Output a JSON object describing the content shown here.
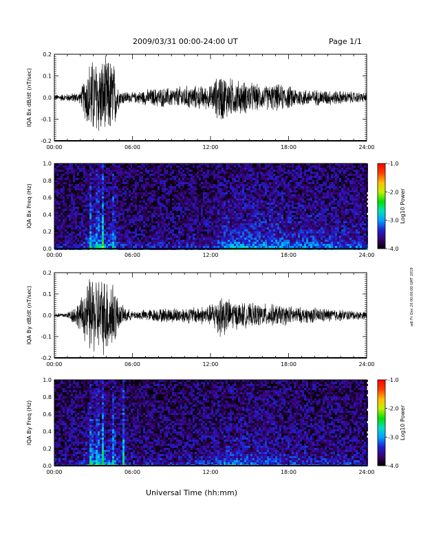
{
  "header": {
    "date_range": "2009/03/31  00:00-24:00 UT",
    "page": "Page 1/1"
  },
  "side_note": "adl Fri Dec 20 00:00:00 GMT 2019",
  "x_axis": {
    "title": "Universal Time (hh:mm)",
    "tick_labels": [
      "00:00",
      "06:00",
      "12:00",
      "18:00",
      "24:00"
    ]
  },
  "colorbar": {
    "label": "Log10 Power",
    "ticks": [
      "-1.0",
      "-2.0",
      "-3.0",
      "-4.0"
    ],
    "range": [
      -4.0,
      -1.0
    ],
    "colormap": [
      "#000000",
      "#3a0070",
      "#2020d0",
      "#00a0ff",
      "#00e0c0",
      "#00e000",
      "#c0f000",
      "#ffc000",
      "#ff4000",
      "#ff0000"
    ]
  },
  "chart_data": [
    {
      "type": "line",
      "ylabel": "IQA Bx dB/dt (nT/sec)",
      "xlim": [
        "00:00",
        "24:00"
      ],
      "ylim": [
        -0.2,
        0.2
      ],
      "y_ticks": [
        "0.2",
        "0.1",
        "0.0",
        "-0.1",
        "-0.2"
      ],
      "series": [
        {
          "x": [
            "00:00",
            "01:00",
            "02:00",
            "02:45",
            "03:15",
            "03:45",
            "04:30",
            "05:00",
            "06:00",
            "07:00",
            "08:00",
            "09:00",
            "10:00",
            "11:00",
            "12:00",
            "12:45",
            "13:30",
            "14:00",
            "15:00",
            "16:00",
            "17:00",
            "18:00",
            "19:00",
            "20:00",
            "21:00",
            "22:00",
            "23:00",
            "24:00"
          ],
          "values": [
            0.015,
            0.02,
            0.03,
            0.2,
            0.2,
            0.2,
            0.2,
            0.04,
            0.025,
            0.04,
            0.05,
            0.05,
            0.06,
            0.06,
            0.06,
            0.13,
            0.1,
            0.09,
            0.08,
            0.06,
            0.07,
            0.06,
            0.045,
            0.04,
            0.04,
            0.035,
            0.03,
            0.025
          ]
        }
      ],
      "line_color": "#000000"
    },
    {
      "type": "heatmap",
      "ylabel": "IQA Bx Freq (Hz)",
      "xlim": [
        "00:00",
        "24:00"
      ],
      "ylim": [
        0.0,
        1.0
      ],
      "y_ticks": [
        "1.0",
        "0.8",
        "0.6",
        "0.4",
        "0.2",
        "0.0"
      ],
      "bursts": [
        "02:45",
        "03:15",
        "03:40",
        "04:30"
      ],
      "activity_x": [
        "00:00",
        "02:00",
        "03:00",
        "04:00",
        "05:00",
        "06:00",
        "08:00",
        "10:00",
        "12:00",
        "13:00",
        "14:00",
        "16:00",
        "18:00",
        "20:00",
        "22:00",
        "24:00"
      ],
      "activity": [
        0.18,
        0.25,
        0.6,
        0.5,
        0.25,
        0.2,
        0.22,
        0.25,
        0.3,
        0.55,
        0.6,
        0.6,
        0.55,
        0.5,
        0.45,
        0.4
      ]
    },
    {
      "type": "line",
      "ylabel": "IQA By dB/dt (nT/sec)",
      "xlim": [
        "00:00",
        "24:00"
      ],
      "ylim": [
        -0.2,
        0.2
      ],
      "y_ticks": [
        "0.2",
        "0.1",
        "0.0",
        "-0.1",
        "-0.2"
      ],
      "series": [
        {
          "x": [
            "00:00",
            "01:00",
            "02:00",
            "02:45",
            "03:15",
            "03:45",
            "04:30",
            "05:00",
            "06:00",
            "07:00",
            "08:00",
            "09:00",
            "10:00",
            "11:00",
            "12:00",
            "12:45",
            "13:30",
            "14:00",
            "15:00",
            "16:00",
            "17:00",
            "18:00",
            "19:00",
            "20:00",
            "21:00",
            "22:00",
            "23:00",
            "24:00"
          ],
          "values": [
            0.01,
            0.015,
            0.08,
            0.2,
            0.2,
            0.2,
            0.2,
            0.06,
            0.02,
            0.03,
            0.035,
            0.04,
            0.04,
            0.045,
            0.055,
            0.12,
            0.08,
            0.07,
            0.06,
            0.06,
            0.055,
            0.05,
            0.04,
            0.04,
            0.035,
            0.03,
            0.025,
            0.02
          ]
        }
      ],
      "line_color": "#000000"
    },
    {
      "type": "heatmap",
      "ylabel": "IQA By Freq (Hz)",
      "xlim": [
        "00:00",
        "24:00"
      ],
      "ylim": [
        0.0,
        1.0
      ],
      "y_ticks": [
        "1.0",
        "0.8",
        "0.6",
        "0.4",
        "0.2",
        "0.0"
      ],
      "bursts": [
        "02:45",
        "03:15",
        "03:40",
        "04:30",
        "05:15"
      ],
      "activity_x": [
        "00:00",
        "02:00",
        "03:00",
        "04:00",
        "05:00",
        "06:00",
        "08:00",
        "10:00",
        "12:00",
        "13:00",
        "14:00",
        "16:00",
        "18:00",
        "20:00",
        "22:00",
        "24:00"
      ],
      "activity": [
        0.18,
        0.25,
        0.65,
        0.55,
        0.35,
        0.2,
        0.22,
        0.25,
        0.3,
        0.5,
        0.5,
        0.4,
        0.35,
        0.3,
        0.28,
        0.25
      ]
    }
  ]
}
